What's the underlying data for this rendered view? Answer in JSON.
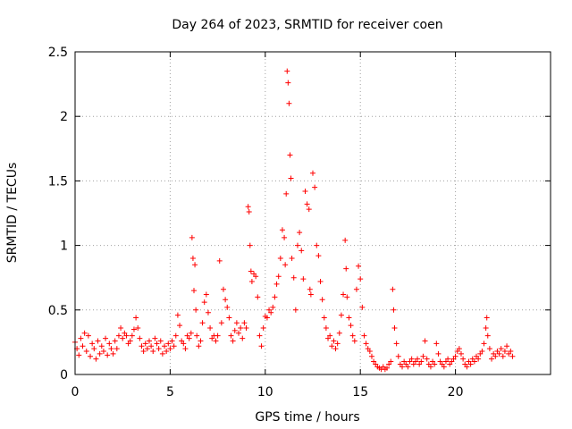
{
  "chart_data": {
    "type": "scatter",
    "title": "Day 264 of 2023, SRMTID for receiver coen",
    "xlabel": "GPS time / hours",
    "ylabel": "SRMTID / TECUs",
    "xlim": [
      0,
      25
    ],
    "ylim": [
      0,
      2.5
    ],
    "xticks": [
      0,
      5,
      10,
      15,
      20
    ],
    "xtick_labels": [
      "0",
      "5",
      "10",
      "15",
      "20"
    ],
    "yticks": [
      0,
      0.5,
      1,
      1.5,
      2,
      2.5
    ],
    "ytick_labels": [
      "0",
      "0.5",
      "1",
      "1.5",
      "2",
      "2.5"
    ],
    "grid": true,
    "marker": "+",
    "color": "#ff0000",
    "series": [
      {
        "name": "coen",
        "points": [
          [
            0.0,
            0.25
          ],
          [
            0.1,
            0.2
          ],
          [
            0.2,
            0.15
          ],
          [
            0.3,
            0.28
          ],
          [
            0.4,
            0.22
          ],
          [
            0.5,
            0.32
          ],
          [
            0.6,
            0.18
          ],
          [
            0.7,
            0.3
          ],
          [
            0.8,
            0.14
          ],
          [
            0.9,
            0.24
          ],
          [
            1.0,
            0.2
          ],
          [
            1.1,
            0.12
          ],
          [
            1.2,
            0.26
          ],
          [
            1.3,
            0.16
          ],
          [
            1.4,
            0.22
          ],
          [
            1.5,
            0.18
          ],
          [
            1.6,
            0.28
          ],
          [
            1.7,
            0.15
          ],
          [
            1.8,
            0.24
          ],
          [
            1.9,
            0.2
          ],
          [
            2.0,
            0.16
          ],
          [
            2.1,
            0.26
          ],
          [
            2.2,
            0.2
          ],
          [
            2.3,
            0.3
          ],
          [
            2.4,
            0.36
          ],
          [
            2.5,
            0.28
          ],
          [
            2.6,
            0.32
          ],
          [
            2.7,
            0.3
          ],
          [
            2.8,
            0.24
          ],
          [
            2.9,
            0.26
          ],
          [
            3.0,
            0.3
          ],
          [
            3.1,
            0.35
          ],
          [
            3.2,
            0.44
          ],
          [
            3.3,
            0.36
          ],
          [
            3.4,
            0.28
          ],
          [
            3.5,
            0.22
          ],
          [
            3.6,
            0.18
          ],
          [
            3.7,
            0.24
          ],
          [
            3.8,
            0.2
          ],
          [
            3.9,
            0.26
          ],
          [
            4.0,
            0.22
          ],
          [
            4.1,
            0.18
          ],
          [
            4.2,
            0.28
          ],
          [
            4.3,
            0.24
          ],
          [
            4.4,
            0.2
          ],
          [
            4.5,
            0.26
          ],
          [
            4.6,
            0.16
          ],
          [
            4.7,
            0.22
          ],
          [
            4.8,
            0.18
          ],
          [
            4.9,
            0.24
          ],
          [
            5.0,
            0.2
          ],
          [
            5.1,
            0.26
          ],
          [
            5.2,
            0.22
          ],
          [
            5.3,
            0.3
          ],
          [
            5.4,
            0.46
          ],
          [
            5.5,
            0.38
          ],
          [
            5.6,
            0.26
          ],
          [
            5.7,
            0.24
          ],
          [
            5.8,
            0.2
          ],
          [
            5.9,
            0.3
          ],
          [
            6.0,
            0.28
          ],
          [
            6.1,
            0.32
          ],
          [
            6.15,
            1.06
          ],
          [
            6.2,
            0.9
          ],
          [
            6.25,
            0.65
          ],
          [
            6.3,
            0.85
          ],
          [
            6.35,
            0.5
          ],
          [
            6.4,
            0.3
          ],
          [
            6.5,
            0.22
          ],
          [
            6.6,
            0.26
          ],
          [
            6.7,
            0.4
          ],
          [
            6.8,
            0.56
          ],
          [
            6.9,
            0.62
          ],
          [
            7.0,
            0.48
          ],
          [
            7.1,
            0.36
          ],
          [
            7.2,
            0.28
          ],
          [
            7.3,
            0.3
          ],
          [
            7.4,
            0.26
          ],
          [
            7.5,
            0.3
          ],
          [
            7.6,
            0.88
          ],
          [
            7.7,
            0.4
          ],
          [
            7.8,
            0.66
          ],
          [
            7.9,
            0.58
          ],
          [
            8.0,
            0.52
          ],
          [
            8.1,
            0.44
          ],
          [
            8.2,
            0.3
          ],
          [
            8.3,
            0.26
          ],
          [
            8.4,
            0.34
          ],
          [
            8.5,
            0.4
          ],
          [
            8.6,
            0.32
          ],
          [
            8.7,
            0.36
          ],
          [
            8.8,
            0.28
          ],
          [
            8.9,
            0.4
          ],
          [
            9.0,
            0.36
          ],
          [
            9.1,
            1.3
          ],
          [
            9.15,
            1.26
          ],
          [
            9.2,
            1.0
          ],
          [
            9.25,
            0.8
          ],
          [
            9.3,
            0.72
          ],
          [
            9.4,
            0.78
          ],
          [
            9.5,
            0.76
          ],
          [
            9.6,
            0.6
          ],
          [
            9.7,
            0.3
          ],
          [
            9.8,
            0.22
          ],
          [
            9.9,
            0.36
          ],
          [
            10.0,
            0.45
          ],
          [
            10.1,
            0.44
          ],
          [
            10.2,
            0.5
          ],
          [
            10.3,
            0.48
          ],
          [
            10.4,
            0.52
          ],
          [
            10.5,
            0.6
          ],
          [
            10.6,
            0.7
          ],
          [
            10.7,
            0.76
          ],
          [
            10.8,
            0.9
          ],
          [
            10.9,
            1.12
          ],
          [
            11.0,
            1.06
          ],
          [
            11.05,
            0.85
          ],
          [
            11.1,
            1.4
          ],
          [
            11.15,
            2.35
          ],
          [
            11.2,
            2.26
          ],
          [
            11.25,
            2.1
          ],
          [
            11.3,
            1.7
          ],
          [
            11.35,
            1.52
          ],
          [
            11.4,
            0.9
          ],
          [
            11.5,
            0.75
          ],
          [
            11.6,
            0.5
          ],
          [
            11.7,
            1.0
          ],
          [
            11.8,
            1.1
          ],
          [
            11.9,
            0.96
          ],
          [
            12.0,
            0.74
          ],
          [
            12.1,
            1.42
          ],
          [
            12.2,
            1.32
          ],
          [
            12.3,
            1.28
          ],
          [
            12.35,
            0.66
          ],
          [
            12.4,
            0.62
          ],
          [
            12.5,
            1.56
          ],
          [
            12.6,
            1.45
          ],
          [
            12.7,
            1.0
          ],
          [
            12.8,
            0.92
          ],
          [
            12.9,
            0.72
          ],
          [
            13.0,
            0.58
          ],
          [
            13.1,
            0.44
          ],
          [
            13.2,
            0.36
          ],
          [
            13.3,
            0.28
          ],
          [
            13.4,
            0.3
          ],
          [
            13.5,
            0.22
          ],
          [
            13.6,
            0.26
          ],
          [
            13.7,
            0.2
          ],
          [
            13.8,
            0.24
          ],
          [
            13.9,
            0.32
          ],
          [
            14.0,
            0.46
          ],
          [
            14.1,
            0.62
          ],
          [
            14.2,
            1.04
          ],
          [
            14.25,
            0.82
          ],
          [
            14.3,
            0.6
          ],
          [
            14.4,
            0.44
          ],
          [
            14.5,
            0.38
          ],
          [
            14.6,
            0.3
          ],
          [
            14.7,
            0.26
          ],
          [
            14.8,
            0.66
          ],
          [
            14.9,
            0.84
          ],
          [
            15.0,
            0.74
          ],
          [
            15.1,
            0.52
          ],
          [
            15.2,
            0.3
          ],
          [
            15.3,
            0.24
          ],
          [
            15.4,
            0.2
          ],
          [
            15.5,
            0.18
          ],
          [
            15.6,
            0.14
          ],
          [
            15.7,
            0.1
          ],
          [
            15.8,
            0.08
          ],
          [
            15.9,
            0.06
          ],
          [
            16.0,
            0.05
          ],
          [
            16.1,
            0.04
          ],
          [
            16.2,
            0.06
          ],
          [
            16.3,
            0.04
          ],
          [
            16.4,
            0.05
          ],
          [
            16.5,
            0.08
          ],
          [
            16.6,
            0.1
          ],
          [
            16.7,
            0.66
          ],
          [
            16.75,
            0.5
          ],
          [
            16.8,
            0.36
          ],
          [
            16.9,
            0.24
          ],
          [
            17.0,
            0.14
          ],
          [
            17.1,
            0.08
          ],
          [
            17.2,
            0.06
          ],
          [
            17.3,
            0.1
          ],
          [
            17.4,
            0.08
          ],
          [
            17.5,
            0.06
          ],
          [
            17.6,
            0.1
          ],
          [
            17.7,
            0.12
          ],
          [
            17.8,
            0.08
          ],
          [
            17.9,
            0.1
          ],
          [
            18.0,
            0.12
          ],
          [
            18.1,
            0.08
          ],
          [
            18.2,
            0.1
          ],
          [
            18.3,
            0.14
          ],
          [
            18.4,
            0.26
          ],
          [
            18.5,
            0.12
          ],
          [
            18.6,
            0.08
          ],
          [
            18.7,
            0.06
          ],
          [
            18.8,
            0.1
          ],
          [
            18.9,
            0.08
          ],
          [
            19.0,
            0.24
          ],
          [
            19.1,
            0.16
          ],
          [
            19.2,
            0.1
          ],
          [
            19.3,
            0.08
          ],
          [
            19.4,
            0.06
          ],
          [
            19.5,
            0.1
          ],
          [
            19.6,
            0.12
          ],
          [
            19.7,
            0.08
          ],
          [
            19.8,
            0.1
          ],
          [
            19.9,
            0.12
          ],
          [
            20.0,
            0.14
          ],
          [
            20.1,
            0.18
          ],
          [
            20.2,
            0.2
          ],
          [
            20.3,
            0.16
          ],
          [
            20.4,
            0.12
          ],
          [
            20.5,
            0.08
          ],
          [
            20.6,
            0.06
          ],
          [
            20.7,
            0.1
          ],
          [
            20.8,
            0.08
          ],
          [
            20.9,
            0.12
          ],
          [
            21.0,
            0.1
          ],
          [
            21.1,
            0.14
          ],
          [
            21.2,
            0.12
          ],
          [
            21.3,
            0.16
          ],
          [
            21.4,
            0.18
          ],
          [
            21.5,
            0.24
          ],
          [
            21.6,
            0.36
          ],
          [
            21.65,
            0.44
          ],
          [
            21.7,
            0.3
          ],
          [
            21.8,
            0.2
          ],
          [
            21.9,
            0.12
          ],
          [
            22.0,
            0.16
          ],
          [
            22.1,
            0.14
          ],
          [
            22.2,
            0.18
          ],
          [
            22.3,
            0.16
          ],
          [
            22.4,
            0.2
          ],
          [
            22.5,
            0.14
          ],
          [
            22.6,
            0.18
          ],
          [
            22.7,
            0.22
          ],
          [
            22.8,
            0.16
          ],
          [
            22.9,
            0.18
          ],
          [
            23.0,
            0.14
          ]
        ]
      }
    ]
  }
}
